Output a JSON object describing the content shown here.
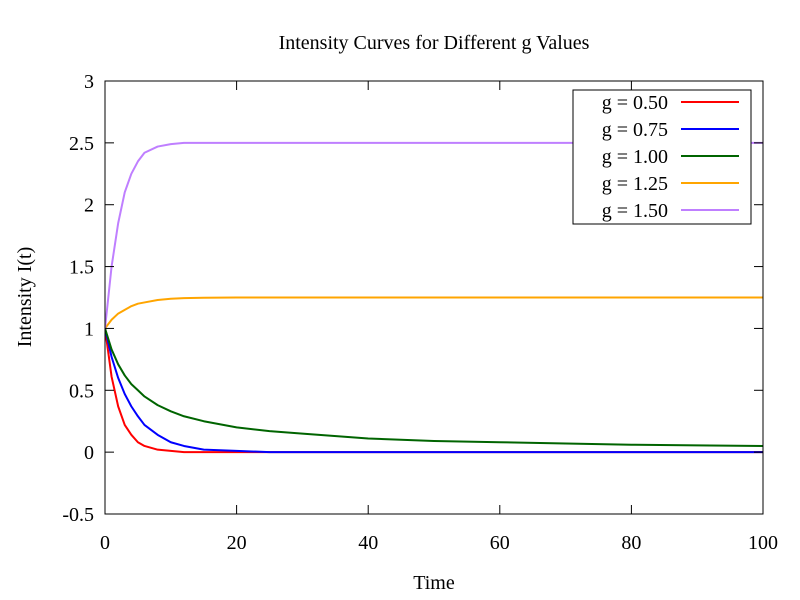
{
  "chart_data": {
    "type": "line",
    "title": "Intensity Curves for Different g Values",
    "xlabel": "Time",
    "ylabel": "Intensity I(t)",
    "xlim": [
      0,
      100
    ],
    "ylim": [
      -0.5,
      3
    ],
    "xticks": [
      0,
      20,
      40,
      60,
      80,
      100
    ],
    "xtick_labels": [
      "0",
      "20",
      "40",
      "60",
      "80",
      "100"
    ],
    "yticks": [
      -0.5,
      0,
      0.5,
      1,
      1.5,
      2,
      2.5,
      3
    ],
    "ytick_labels": [
      "-0.5",
      "0",
      "0.5",
      "1",
      "1.5",
      "2",
      "2.5",
      "3"
    ],
    "grid": false,
    "legend_position": "top-right",
    "x": [
      0,
      1,
      2,
      3,
      4,
      5,
      6,
      8,
      10,
      12,
      15,
      20,
      25,
      30,
      40,
      50,
      60,
      70,
      80,
      90,
      100
    ],
    "series": [
      {
        "name": "g = 0.50",
        "color": "#ff0000",
        "values": [
          1,
          0.61,
          0.37,
          0.22,
          0.14,
          0.08,
          0.05,
          0.02,
          0.01,
          0.0,
          0.0,
          0,
          0,
          0,
          0,
          0,
          0,
          0,
          0,
          0,
          0
        ]
      },
      {
        "name": "g = 0.75",
        "color": "#0000ff",
        "values": [
          1,
          0.77,
          0.6,
          0.47,
          0.37,
          0.29,
          0.22,
          0.14,
          0.08,
          0.05,
          0.02,
          0.01,
          0,
          0,
          0,
          0,
          0,
          0,
          0,
          0,
          0
        ]
      },
      {
        "name": "g = 1.00",
        "color": "#006400",
        "values": [
          1,
          0.83,
          0.71,
          0.62,
          0.55,
          0.5,
          0.45,
          0.38,
          0.33,
          0.29,
          0.25,
          0.2,
          0.17,
          0.15,
          0.11,
          0.09,
          0.08,
          0.07,
          0.06,
          0.055,
          0.05
        ]
      },
      {
        "name": "g = 1.25",
        "color": "#ffa500",
        "values": [
          1,
          1.07,
          1.12,
          1.15,
          1.18,
          1.2,
          1.21,
          1.23,
          1.24,
          1.245,
          1.248,
          1.25,
          1.25,
          1.25,
          1.25,
          1.25,
          1.25,
          1.25,
          1.25,
          1.25,
          1.25
        ]
      },
      {
        "name": "g = 1.50",
        "color": "#bf7fff",
        "values": [
          1,
          1.5,
          1.85,
          2.1,
          2.25,
          2.35,
          2.42,
          2.47,
          2.49,
          2.5,
          2.5,
          2.5,
          2.5,
          2.5,
          2.5,
          2.5,
          2.5,
          2.5,
          2.5,
          2.5,
          2.5
        ]
      }
    ]
  }
}
